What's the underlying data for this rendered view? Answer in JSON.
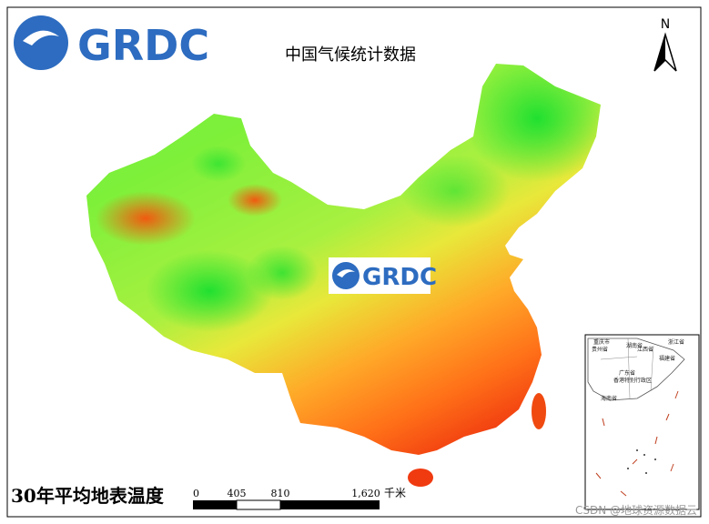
{
  "logo": {
    "text": "GRDC"
  },
  "title": "中国气候统计数据",
  "north_arrow": "N",
  "map_title": "30年平均地表温度",
  "center_logo": {
    "text": "GRDC"
  },
  "scale_bar": {
    "labels": [
      "0",
      "405",
      "810",
      "1,620"
    ],
    "unit": "千米"
  },
  "inset": {
    "labels": [
      "重庆市",
      "湖南省",
      "江西省",
      "浙江省",
      "贵州省",
      "福建省",
      "广东省",
      "香港特别行政区",
      "海南省"
    ]
  },
  "watermark": "CSDN @地球资源数据云"
}
